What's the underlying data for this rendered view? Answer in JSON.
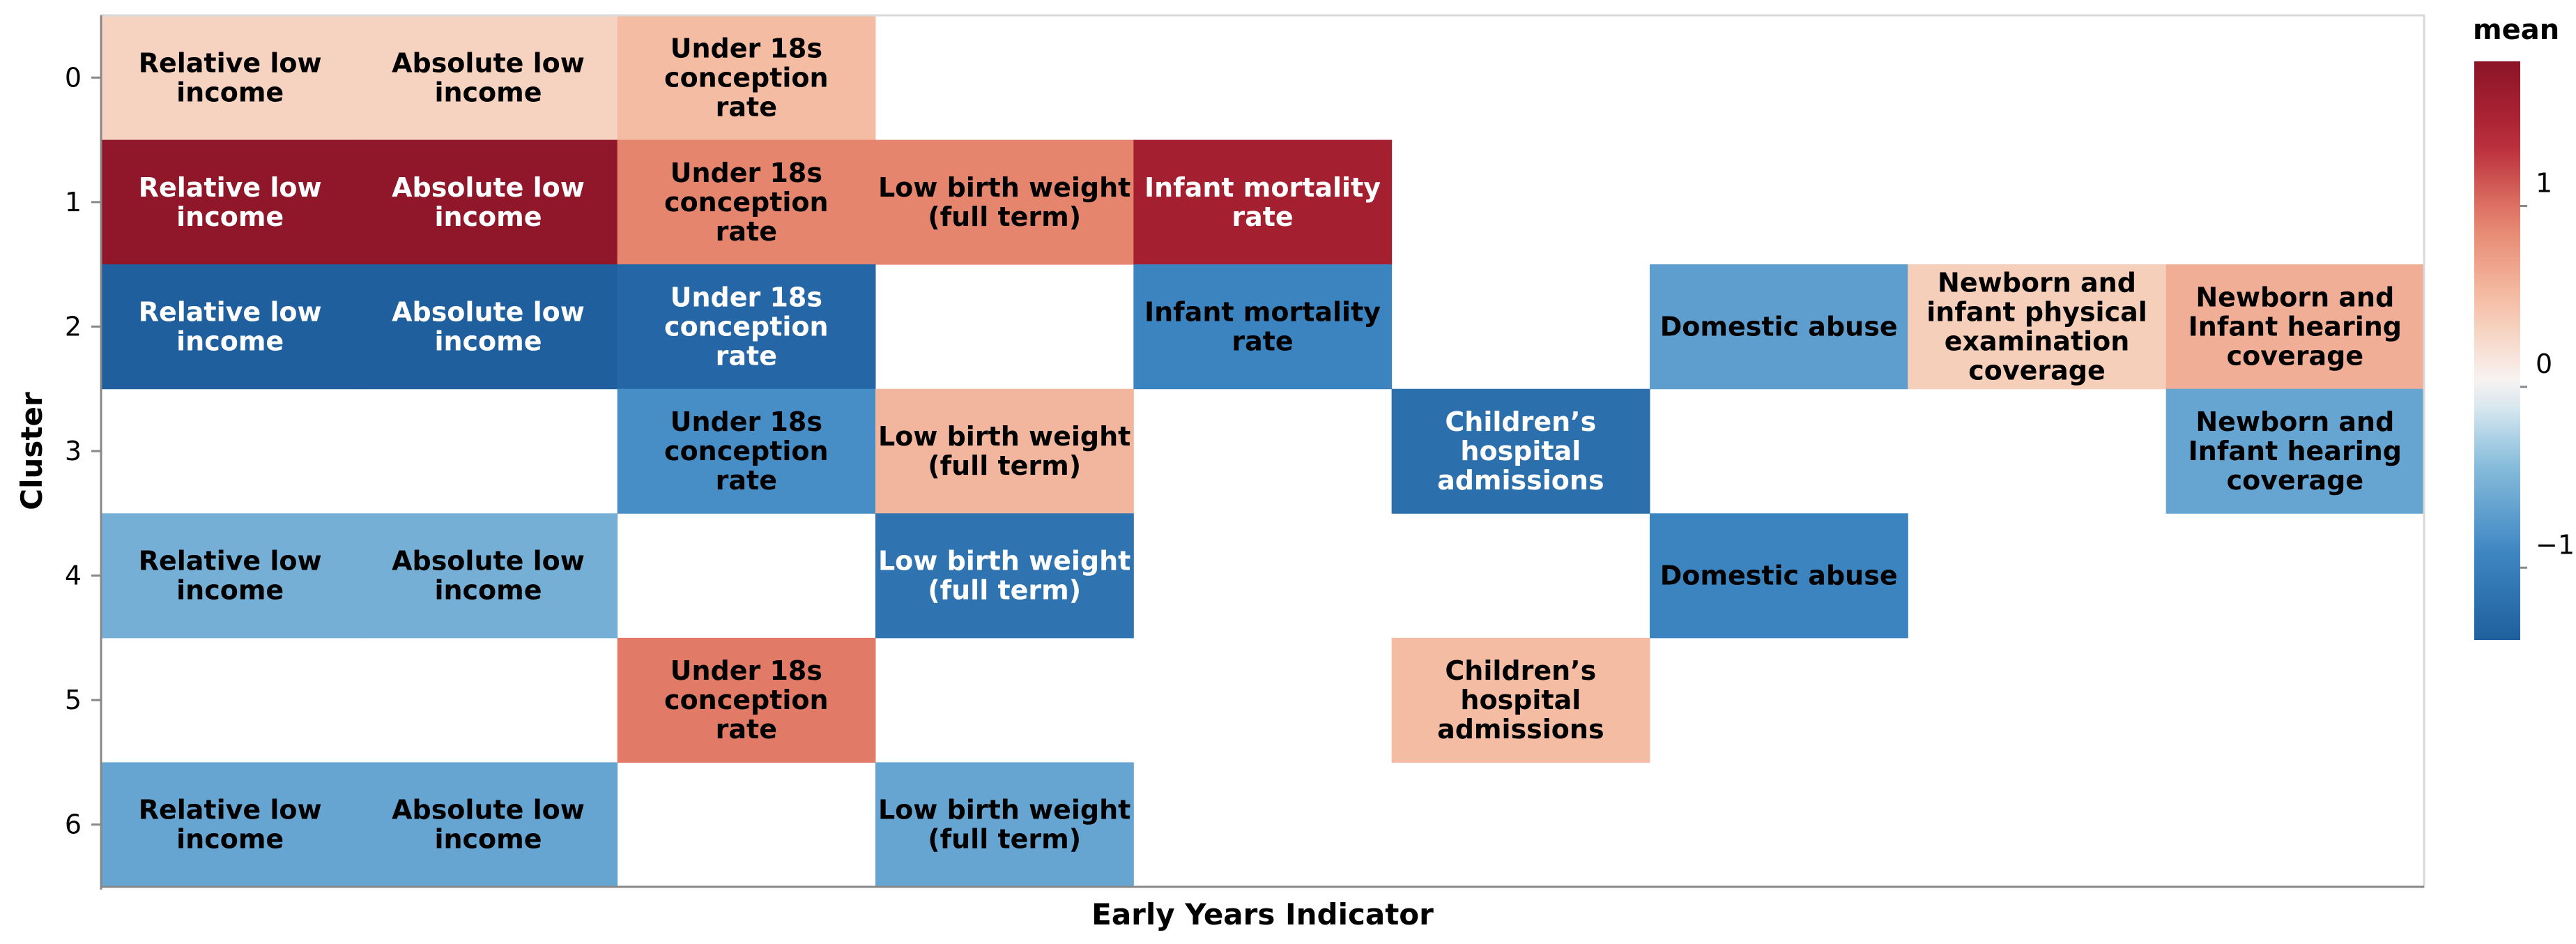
{
  "chart_data": {
    "type": "heatmap",
    "xlabel": "Early Years Indicator",
    "ylabel": "Cluster",
    "y_categories": [
      "0",
      "1",
      "2",
      "3",
      "4",
      "5",
      "6"
    ],
    "x_categories": [
      "Relative low income",
      "Absolute low income",
      "Under 18s conception rate",
      "Low birth weight (full term)",
      "Infant mortality rate",
      "Children's hospital admissions",
      "Domestic abuse",
      "Newborn and infant physical examination coverage",
      "Newborn and Infant hearing coverage"
    ],
    "x_tick_labels_shown": false,
    "legend": {
      "title": "mean",
      "ticks": [
        1,
        0,
        -1
      ],
      "tick_labels": [
        "1",
        "0",
        "−1"
      ],
      "domain": [
        -1.4,
        1.8
      ],
      "placement": "right",
      "colors": {
        "low": "#1f5f9e",
        "mid_low": "#6fb0d8",
        "mid": "#f7f7f7",
        "mid_high": "#f4a582",
        "high": "#8b1427"
      }
    },
    "cells": [
      {
        "cluster": "0",
        "indicator": "Relative low income",
        "label": "Relative low\nincome",
        "value": 0.32
      },
      {
        "cluster": "0",
        "indicator": "Absolute low income",
        "label": "Absolute low\nincome",
        "value": 0.32
      },
      {
        "cluster": "0",
        "indicator": "Under 18s conception rate",
        "label": "Under 18s\nconception\nrate",
        "value": 0.5
      },
      {
        "cluster": "1",
        "indicator": "Relative low income",
        "label": "Relative low\nincome",
        "value": 1.75
      },
      {
        "cluster": "1",
        "indicator": "Absolute low income",
        "label": "Absolute low\nincome",
        "value": 1.75
      },
      {
        "cluster": "1",
        "indicator": "Under 18s conception rate",
        "label": "Under 18s\nconception\nrate",
        "value": 0.9
      },
      {
        "cluster": "1",
        "indicator": "Low birth weight (full term)",
        "label": "Low birth weight\n(full term)",
        "value": 0.9
      },
      {
        "cluster": "1",
        "indicator": "Infant mortality rate",
        "label": "Infant mortality\nrate",
        "value": 1.55
      },
      {
        "cluster": "2",
        "indicator": "Relative low income",
        "label": "Relative low\nincome",
        "value": -1.4
      },
      {
        "cluster": "2",
        "indicator": "Absolute low income",
        "label": "Absolute low\nincome",
        "value": -1.4
      },
      {
        "cluster": "2",
        "indicator": "Under 18s conception rate",
        "label": "Under 18s\nconception\nrate",
        "value": -1.3
      },
      {
        "cluster": "2",
        "indicator": "Infant mortality rate",
        "label": "Infant mortality\nrate",
        "value": -0.95
      },
      {
        "cluster": "2",
        "indicator": "Domestic abuse",
        "label": "Domestic abuse",
        "value": -0.7
      },
      {
        "cluster": "2",
        "indicator": "Newborn and infant physical examination coverage",
        "label": "Newborn and\ninfant physical\nexamination\ncoverage",
        "value": 0.35
      },
      {
        "cluster": "2",
        "indicator": "Newborn and Infant hearing coverage",
        "label": "Newborn and\nInfant hearing\ncoverage",
        "value": 0.6
      },
      {
        "cluster": "3",
        "indicator": "Under 18s conception rate",
        "label": "Under 18s\nconception\nrate",
        "value": -0.85
      },
      {
        "cluster": "3",
        "indicator": "Low birth weight (full term)",
        "label": "Low birth weight\n(full term)",
        "value": 0.55
      },
      {
        "cluster": "3",
        "indicator": "Children's hospital admissions",
        "label": "Children’s\nhospital\nadmissions",
        "value": -1.2
      },
      {
        "cluster": "3",
        "indicator": "Newborn and Infant hearing coverage",
        "label": "Newborn and\nInfant hearing\ncoverage",
        "value": -0.65
      },
      {
        "cluster": "4",
        "indicator": "Relative low income",
        "label": "Relative low\nincome",
        "value": -0.55
      },
      {
        "cluster": "4",
        "indicator": "Absolute low income",
        "label": "Absolute low\nincome",
        "value": -0.55
      },
      {
        "cluster": "4",
        "indicator": "Low birth weight (full term)",
        "label": "Low birth weight\n(full term)",
        "value": -1.15
      },
      {
        "cluster": "4",
        "indicator": "Domestic abuse",
        "label": "Domestic abuse",
        "value": -0.95
      },
      {
        "cluster": "5",
        "indicator": "Under 18s conception rate",
        "label": "Under 18s\nconception\nrate",
        "value": 0.95
      },
      {
        "cluster": "5",
        "indicator": "Children's hospital admissions",
        "label": "Children’s\nhospital\nadmissions",
        "value": 0.5
      },
      {
        "cluster": "6",
        "indicator": "Relative low income",
        "label": "Relative low\nincome",
        "value": -0.65
      },
      {
        "cluster": "6",
        "indicator": "Absolute low income",
        "label": "Absolute low\nincome",
        "value": -0.65
      },
      {
        "cluster": "6",
        "indicator": "Low birth weight (full term)",
        "label": "Low birth weight\n(full term)",
        "value": -0.65
      }
    ]
  }
}
